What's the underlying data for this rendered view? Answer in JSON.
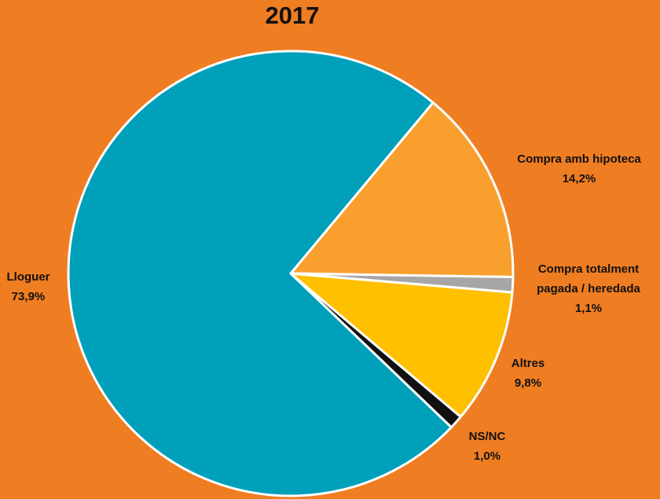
{
  "chart_data": {
    "type": "pie",
    "title": "2017",
    "categories": [
      "Compra amb hipoteca",
      "Compra totalment pagada / heredada",
      "Altres",
      "NS/NC",
      "Lloguer"
    ],
    "values": [
      14.2,
      1.1,
      9.8,
      1.0,
      73.9
    ],
    "value_labels": [
      "14,2%",
      "1,1%",
      "9,8%",
      "1,0%",
      "73,9%"
    ],
    "colors": [
      "#f99f2e",
      "#a6a6a6",
      "#ffc000",
      "#111111",
      "#00a0bb"
    ]
  }
}
